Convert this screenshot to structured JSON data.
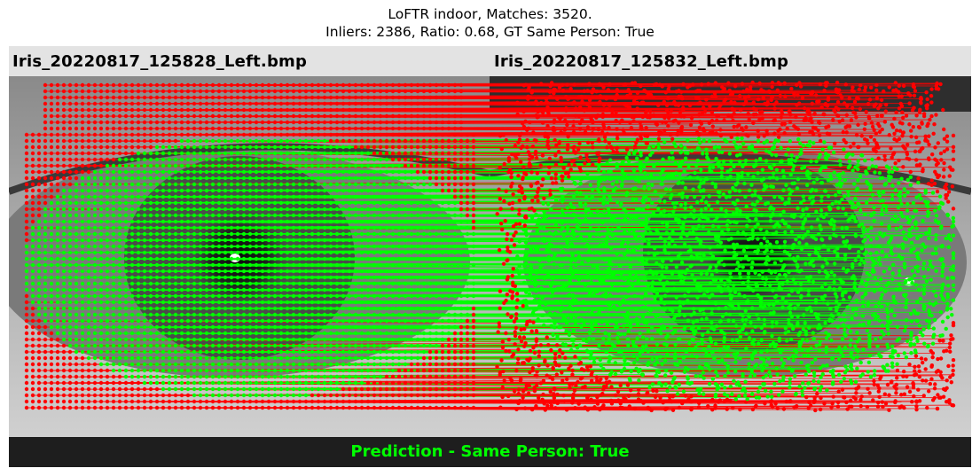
{
  "title": {
    "line1": "LoFTR indoor, Matches: 3520.",
    "line2": "Inliers: 2386, Ratio: 0.68, GT Same Person: True"
  },
  "images": {
    "left_label": "Iris_20220817_125828_Left.bmp",
    "right_label": "Iris_20220817_125832_Left.bmp"
  },
  "footer": {
    "prediction": "Prediction - Same Person: True"
  },
  "colors": {
    "inlier": "#00ff00",
    "outlier": "#ff0000",
    "header_bg": "#e3e3e3",
    "footer_bg": "#1e1e1e"
  }
}
